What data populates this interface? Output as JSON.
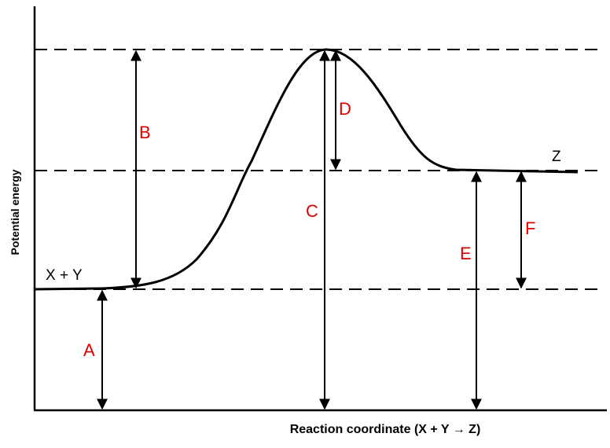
{
  "axes": {
    "y_label": "Potential energy",
    "x_label": "Reaction coordinate  (X + Y → Z)"
  },
  "species": {
    "reactants": "X + Y",
    "product": "Z"
  },
  "arrows": [
    {
      "label": "A"
    },
    {
      "label": "B"
    },
    {
      "label": "C"
    },
    {
      "label": "D"
    },
    {
      "label": "E"
    },
    {
      "label": "F"
    }
  ]
}
